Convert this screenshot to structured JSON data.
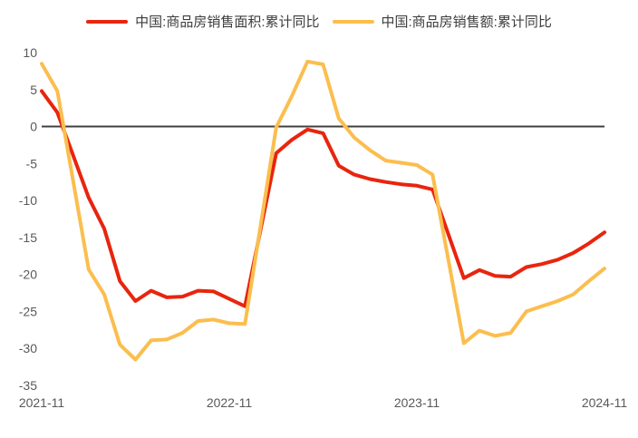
{
  "chart_data": {
    "type": "line",
    "title": "",
    "legend_position": "top",
    "grid": false,
    "zero_line": {
      "shown": true,
      "color": "#404040"
    },
    "x_axis": {
      "tick_labels": [
        "2021-11",
        "2022-11",
        "2023-11",
        "2024-11"
      ],
      "start_month": "2021-11",
      "end_month": "2024-11",
      "total_months": 37
    },
    "y_axis": {
      "ticks": [
        10,
        5,
        0,
        -5,
        -10,
        -15,
        -20,
        -25,
        -30,
        -35
      ],
      "range": [
        -35,
        10
      ]
    },
    "months": [
      "2021-11",
      "2021-12",
      "2022-02",
      "2022-03",
      "2022-04",
      "2022-05",
      "2022-06",
      "2022-07",
      "2022-08",
      "2022-09",
      "2022-10",
      "2022-11",
      "2022-12",
      "2023-02",
      "2023-03",
      "2023-04",
      "2023-05",
      "2023-06",
      "2023-07",
      "2023-08",
      "2023-09",
      "2023-10",
      "2023-11",
      "2023-12",
      "2024-02",
      "2024-03",
      "2024-04",
      "2024-05",
      "2024-06",
      "2024-07",
      "2024-08",
      "2024-09",
      "2024-10",
      "2024-11"
    ],
    "series": [
      {
        "name": "中国:商品房销售面积:累计同比",
        "color": "#e8250e",
        "values": [
          4.8,
          1.9,
          -9.6,
          -13.8,
          -20.9,
          -23.6,
          -22.2,
          -23.1,
          -23.0,
          -22.2,
          -22.3,
          -23.3,
          -24.3,
          -3.6,
          -1.8,
          -0.4,
          -0.9,
          -5.3,
          -6.5,
          -7.1,
          -7.5,
          -7.8,
          -8.0,
          -8.5,
          -20.5,
          -19.4,
          -20.2,
          -20.3,
          -19.0,
          -18.6,
          -18.0,
          -17.1,
          -15.8,
          -14.3
        ]
      },
      {
        "name": "中国:商品房销售额:累计同比",
        "color": "#fbbe4e",
        "values": [
          8.5,
          4.8,
          -19.3,
          -22.7,
          -29.5,
          -31.5,
          -28.9,
          -28.8,
          -27.9,
          -26.3,
          -26.1,
          -26.6,
          -26.7,
          -0.1,
          4.1,
          8.8,
          8.4,
          1.1,
          -1.5,
          -3.2,
          -4.6,
          -4.9,
          -5.2,
          -6.5,
          -29.3,
          -27.6,
          -28.3,
          -27.9,
          -25.0,
          -24.3,
          -23.6,
          -22.7,
          -20.9,
          -19.2
        ]
      }
    ]
  },
  "colors": {
    "background": "#ffffff",
    "axis_text": "#595959",
    "legend_text": "#3d3d3d",
    "zero_line": "#404040"
  }
}
